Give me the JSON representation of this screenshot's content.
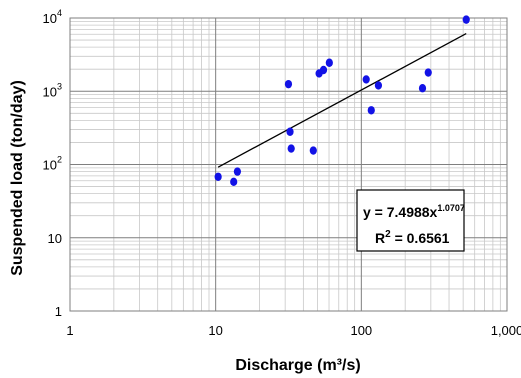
{
  "chart_data": {
    "type": "scatter",
    "xlabel": "Discharge (m³/s)",
    "ylabel": "Suspended load (ton/day)",
    "x_scale": "log",
    "y_scale": "log",
    "xlim": [
      1,
      1000
    ],
    "ylim": [
      1,
      10000
    ],
    "grid": true,
    "x_ticks": [
      {
        "value": 1,
        "label": "1"
      },
      {
        "value": 10,
        "label": "10"
      },
      {
        "value": 100,
        "label": "100"
      },
      {
        "value": 1000,
        "label": "1,000"
      }
    ],
    "y_ticks": [
      {
        "value": 1,
        "base": "1",
        "exp": ""
      },
      {
        "value": 10,
        "base": "10",
        "exp": ""
      },
      {
        "value": 100,
        "base": "10",
        "exp": "2"
      },
      {
        "value": 1000,
        "base": "10",
        "exp": "3"
      },
      {
        "value": 10000,
        "base": "10",
        "exp": "4"
      }
    ],
    "points": [
      {
        "x": 10.4,
        "y": 68
      },
      {
        "x": 13.3,
        "y": 58
      },
      {
        "x": 14.1,
        "y": 80
      },
      {
        "x": 31.6,
        "y": 1250
      },
      {
        "x": 32.4,
        "y": 280
      },
      {
        "x": 33.0,
        "y": 165
      },
      {
        "x": 46.8,
        "y": 155
      },
      {
        "x": 51.3,
        "y": 1750
      },
      {
        "x": 55.0,
        "y": 1950
      },
      {
        "x": 60.3,
        "y": 2450
      },
      {
        "x": 108,
        "y": 1450
      },
      {
        "x": 117,
        "y": 550
      },
      {
        "x": 131,
        "y": 1200
      },
      {
        "x": 263,
        "y": 1100
      },
      {
        "x": 288,
        "y": 1800
      },
      {
        "x": 525,
        "y": 9500
      }
    ],
    "point_color": "#1212e6",
    "trendline": {
      "coefficient": 7.4988,
      "exponent": 1.0707,
      "x_range": [
        10.4,
        525
      ],
      "color": "#000000"
    },
    "equation_box": {
      "line1_prefix": "y = 7.4988x",
      "line1_sup": "1.0707",
      "line2_prefix": "R",
      "line2_sup": "2",
      "line2_suffix": " = 0.6561"
    }
  }
}
